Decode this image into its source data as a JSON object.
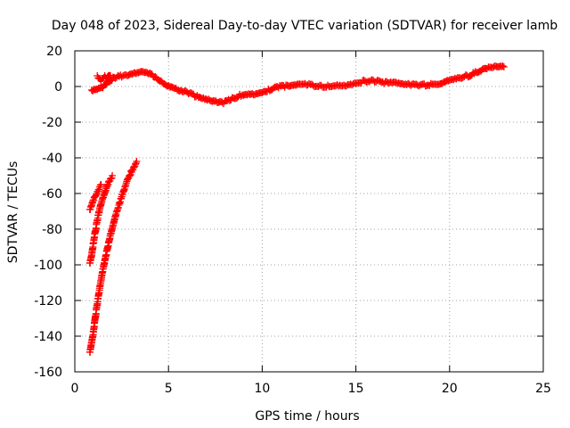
{
  "chart_data": {
    "type": "scatter",
    "title": "Day 048 of 2023, Sidereal Day-to-day VTEC variation (SDTVAR) for receiver lamb",
    "xlabel": "GPS time / hours",
    "ylabel": "SDTVAR / TECUs",
    "xlim": [
      0,
      25
    ],
    "ylim": [
      -160,
      20
    ],
    "xticks": [
      0,
      5,
      10,
      15,
      20,
      25
    ],
    "yticks": [
      -160,
      -140,
      -120,
      -100,
      -80,
      -60,
      -40,
      -20,
      0,
      20
    ],
    "grid": true,
    "marker": "+",
    "color": "#ff0000",
    "series": [
      {
        "x": [
          0.9,
          1.2,
          1.5,
          1.8,
          2.1,
          2.5,
          2.8,
          3.2,
          3.6,
          4.0,
          4.3,
          4.6,
          4.9,
          5.2,
          5.6,
          6.0,
          6.4,
          6.8,
          7.2,
          7.6,
          8.0,
          8.4,
          8.8,
          9.2,
          9.6,
          10.0,
          10.4,
          10.8,
          11.2,
          11.6,
          12.0,
          12.5,
          13.0,
          13.5,
          14.0,
          14.5,
          15.0,
          15.5,
          16.0,
          16.5,
          17.0,
          17.5,
          18.0,
          18.5,
          19.0,
          19.5,
          20.0,
          20.5,
          21.0,
          21.5,
          22.0,
          22.5,
          22.9
        ],
        "y": [
          -2,
          -1,
          0,
          3,
          5,
          6,
          6,
          7,
          8,
          7,
          5,
          3,
          1,
          0,
          -2,
          -3,
          -5,
          -7,
          -8,
          -9,
          -9,
          -7,
          -5,
          -4,
          -4,
          -3,
          -2,
          0,
          0,
          0,
          1,
          1,
          0,
          0,
          1,
          1,
          2,
          3,
          3,
          2,
          2,
          1,
          1,
          1,
          1,
          2,
          4,
          5,
          6,
          8,
          10,
          11,
          11
        ]
      },
      {
        "x": [
          1.2,
          1.3,
          1.4,
          1.5,
          1.6,
          1.7,
          1.8,
          1.9
        ],
        "y": [
          6,
          5,
          4,
          5,
          6,
          5,
          6,
          6
        ]
      },
      {
        "x": [
          0.8,
          0.9,
          1.0,
          1.1,
          1.2,
          1.3,
          1.4
        ],
        "y": [
          -69,
          -66,
          -63,
          -61,
          -59,
          -57,
          -55
        ]
      },
      {
        "x": [
          0.8,
          0.9,
          1.0,
          1.1,
          1.2,
          1.3,
          1.4,
          1.5,
          1.6,
          1.7,
          1.8,
          1.9,
          2.0
        ],
        "y": [
          -99,
          -94,
          -87,
          -81,
          -75,
          -70,
          -66,
          -63,
          -60,
          -57,
          -54,
          -52,
          -50
        ]
      },
      {
        "x": [
          0.8,
          0.9,
          1.0,
          1.1,
          1.2,
          1.3,
          1.4,
          1.5,
          1.6,
          1.7,
          1.8,
          1.9,
          2.0,
          2.1,
          2.2,
          2.3,
          2.4,
          2.5,
          2.6,
          2.7,
          2.8,
          2.9,
          3.0,
          3.1,
          3.2,
          3.3
        ],
        "y": [
          -149,
          -143,
          -137,
          -129,
          -122,
          -115,
          -109,
          -103,
          -98,
          -93,
          -88,
          -83,
          -79,
          -75,
          -71,
          -68,
          -65,
          -62,
          -59,
          -56,
          -53,
          -51,
          -48,
          -46,
          -44,
          -42
        ]
      }
    ]
  }
}
